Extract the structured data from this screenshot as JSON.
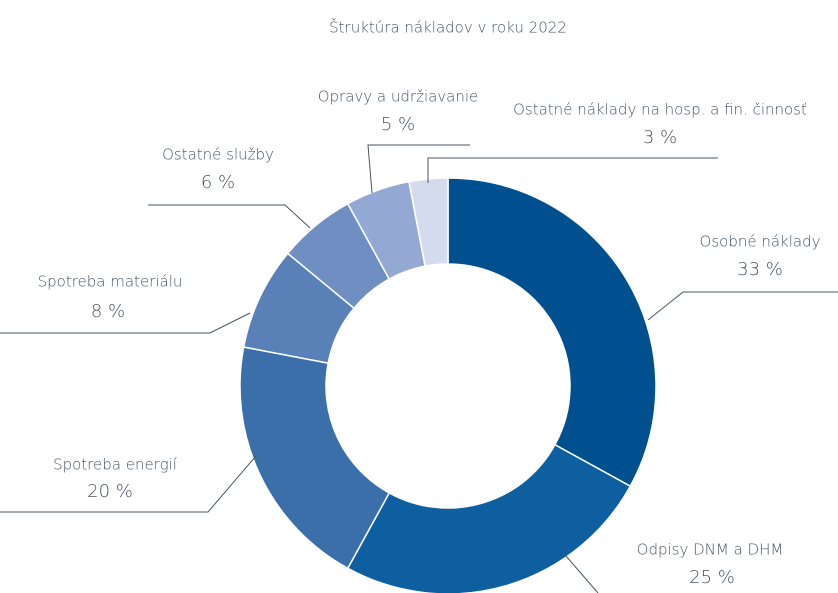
{
  "chart_data": {
    "type": "pie",
    "title": "Štruktúra nákladov v roku 2022",
    "categories": [
      "Osobné náklady",
      "Odpisy DNM a DHM",
      "Spotreba energií",
      "Spotreba materiálu",
      "Ostatné služby",
      "Opravy a udržiavanie",
      "Ostatné náklady na hosp. a fin. činnosť"
    ],
    "values": [
      33,
      25,
      20,
      8,
      6,
      5,
      3
    ],
    "value_labels": [
      "33 %",
      "25 %",
      "20 %",
      "8 %",
      "6 %",
      "5 %",
      "3 %"
    ],
    "colors": [
      "#00508f",
      "#0e5fa0",
      "#3a6faa",
      "#5a80b8",
      "#6f8fc2",
      "#93a9d3",
      "#d3dbec"
    ]
  }
}
